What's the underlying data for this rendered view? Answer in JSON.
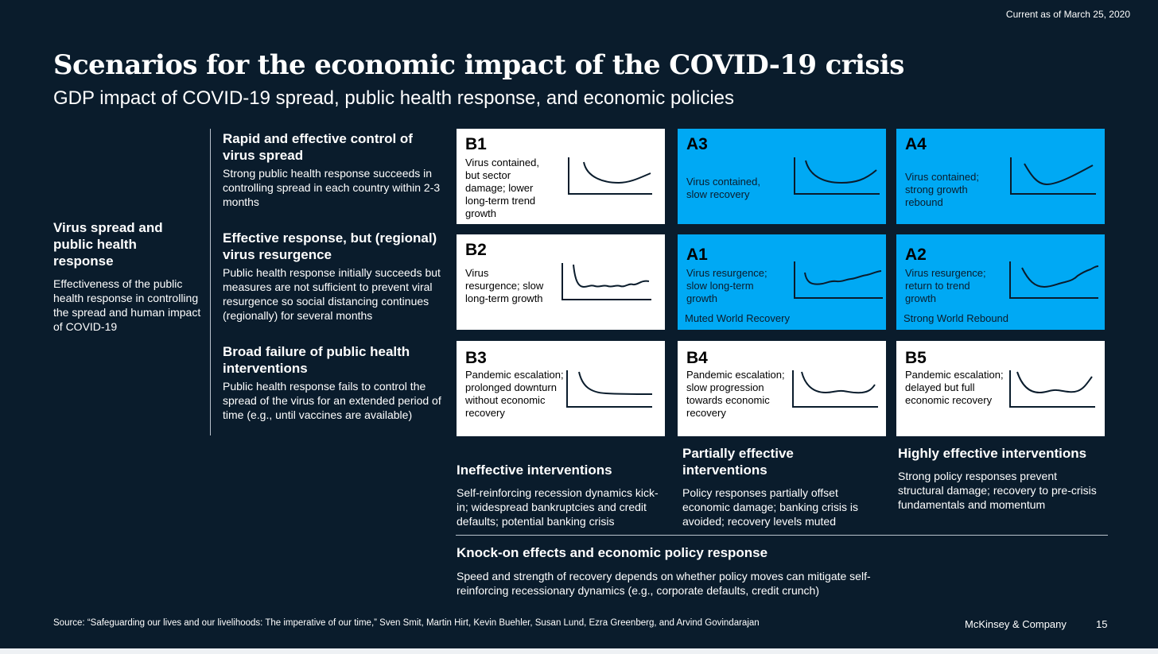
{
  "date_stamp": "Current as of March 25, 2020",
  "title": "Scenarios for the economic impact of the COVID-19 crisis",
  "subtitle": "GDP impact of COVID-19 spread, public health response, and economic policies",
  "left_axis": {
    "heading": "Virus spread and public health response",
    "description": "Effectiveness of the public health response in controlling the spread and human impact of COVID-19"
  },
  "rows": [
    {
      "heading": "Rapid and effective control of virus spread",
      "description": "Strong public health response succeeds in controlling spread in each country within 2-3 months"
    },
    {
      "heading": "Effective response, but (regional) virus resurgence",
      "description": "Public health response initially succeeds but measures are not sufficient to prevent viral resurgence so social distancing continues (regionally) for several months"
    },
    {
      "heading": "Broad failure of public health interventions",
      "description": "Public health response fails to control the spread of the virus for an extended period of time (e.g., until vaccines are available)"
    }
  ],
  "scenarios": {
    "B1": {
      "code": "B1",
      "description": "Virus contained, but sector damage; lower long-term trend growth",
      "footnote": ""
    },
    "A3": {
      "code": "A3",
      "description": "Virus contained, slow recovery",
      "footnote": ""
    },
    "A4": {
      "code": "A4",
      "description": "Virus contained; strong growth rebound",
      "footnote": ""
    },
    "B2": {
      "code": "B2",
      "description": "Virus resurgence; slow long-term growth",
      "footnote": ""
    },
    "A1": {
      "code": "A1",
      "description": "Virus resurgence; slow long-term growth",
      "footnote": "Muted World Recovery"
    },
    "A2": {
      "code": "A2",
      "description": "Virus resurgence; return to trend growth",
      "footnote": "Strong World Rebound"
    },
    "B3": {
      "code": "B3",
      "description": "Pandemic escalation; prolonged downturn without economic recovery",
      "footnote": ""
    },
    "B4": {
      "code": "B4",
      "description": "Pandemic escalation; slow progression towards economic recovery",
      "footnote": ""
    },
    "B5": {
      "code": "B5",
      "description": "Pandemic escalation; delayed but full economic recovery",
      "footnote": ""
    }
  },
  "columns": [
    {
      "heading": "Ineffective interventions",
      "description": "Self-reinforcing recession dynamics kick-in; widespread bankruptcies and credit defaults; potential banking crisis"
    },
    {
      "heading": "Partially effective interventions",
      "description": "Policy responses partially offset economic damage; banking crisis is avoided; recovery levels muted"
    },
    {
      "heading": "Highly effective interventions",
      "description": "Strong policy responses prevent structural damage; recovery to pre-crisis fundamentals and momentum"
    }
  ],
  "bottom_axis": {
    "heading": "Knock-on effects and economic policy response",
    "description": "Speed and strength of recovery depends on whether policy moves can mitigate self-reinforcing recessionary dynamics (e.g., corporate defaults, credit crunch)"
  },
  "source": "Source: “Safeguarding our lives and our livelihoods: The imperative of our time,” Sven Smit, Martin Hirt, Kevin Buehler, Susan Lund, Ezra Greenberg, and Arvind Govindarajan",
  "brand": "McKinsey & Company",
  "page_number": "15",
  "colors": {
    "background": "#0a1c2c",
    "accent_blue": "#00a9f4",
    "card_white": "#ffffff"
  },
  "icons": {
    "curve": "gdp-curve-icon",
    "axes": "axes-icon"
  }
}
